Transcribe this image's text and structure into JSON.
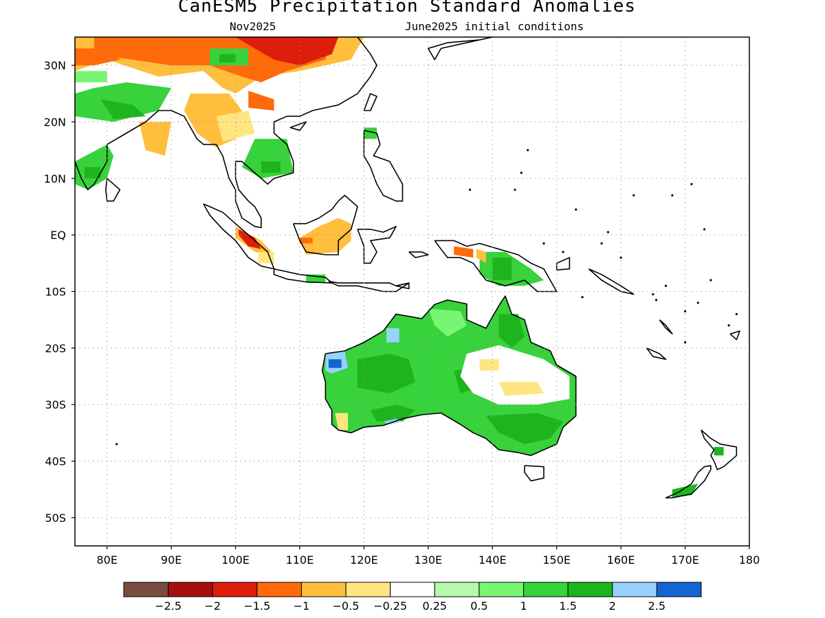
{
  "title": "CanESM5 Precipitation Standard Anomalies",
  "subtitle_left": "Nov2025",
  "subtitle_right": "June2025 initial conditions",
  "map": {
    "lon_range": [
      75,
      180
    ],
    "lat_range": [
      -55,
      35
    ],
    "lon_ticks": [
      {
        "v": 80,
        "label": "80E"
      },
      {
        "v": 90,
        "label": "90E"
      },
      {
        "v": 100,
        "label": "100E"
      },
      {
        "v": 110,
        "label": "110E"
      },
      {
        "v": 120,
        "label": "120E"
      },
      {
        "v": 130,
        "label": "130E"
      },
      {
        "v": 140,
        "label": "140E"
      },
      {
        "v": 150,
        "label": "150E"
      },
      {
        "v": 160,
        "label": "160E"
      },
      {
        "v": 170,
        "label": "170E"
      },
      {
        "v": 180,
        "label": "180"
      }
    ],
    "lat_ticks": [
      {
        "v": 30,
        "label": "30N"
      },
      {
        "v": 20,
        "label": "20N"
      },
      {
        "v": 10,
        "label": "10N"
      },
      {
        "v": 0,
        "label": "EQ"
      },
      {
        "v": -10,
        "label": "10S"
      },
      {
        "v": -20,
        "label": "20S"
      },
      {
        "v": -30,
        "label": "30S"
      },
      {
        "v": -40,
        "label": "40S"
      },
      {
        "v": -50,
        "label": "50S"
      }
    ],
    "grid": "dotted"
  },
  "colorbar": {
    "colors": [
      "#7a4c3e",
      "#a50f0f",
      "#dc1e0a",
      "#ff6a0a",
      "#ffbe3c",
      "#ffe680",
      "#ffffff",
      "#b4faaa",
      "#78f573",
      "#37d23c",
      "#1eb41e",
      "#96d2fa",
      "#1464d2"
    ],
    "labels": [
      "−2.5",
      "−2",
      "−1.5",
      "−1",
      "−0.5",
      "−0.25",
      "0.25",
      "0.5",
      "1",
      "1.5",
      "2",
      "2.5"
    ]
  }
}
